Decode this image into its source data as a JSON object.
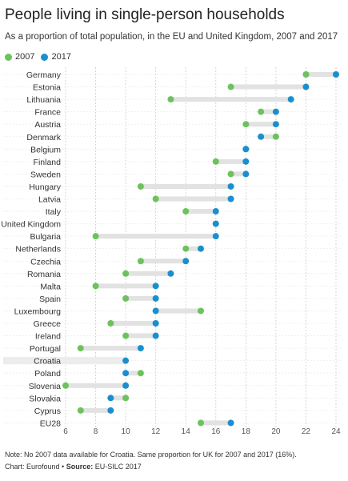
{
  "header": {
    "title": "People living in single-person households",
    "subtitle": "As a proportion of total population, in the EU and United Kingdom, 2007 and 2017"
  },
  "colors": {
    "series_2007": "#6cc25c",
    "series_2017": "#1a8fce",
    "bar": "#e2e2e2",
    "highlight": "#ececec"
  },
  "footer": {
    "note": "Note: No 2007 data available for Croatia. Same proportion for UK for 2007 and 2017 (16%).",
    "chart_credit": "Chart: Eurofound",
    "separator": " • ",
    "source_label": "Source:",
    "source_text": " EU-SILC 2017"
  },
  "chart_data": {
    "type": "dumbbell",
    "categories": [
      "Germany",
      "Estonia",
      "Lithuania",
      "France",
      "Austria",
      "Denmark",
      "Belgium",
      "Finland",
      "Sweden",
      "Hungary",
      "Latvia",
      "Italy",
      "United Kingdom",
      "Bulgaria",
      "Netherlands",
      "Czechia",
      "Romania",
      "Malta",
      "Spain",
      "Luxembourg",
      "Greece",
      "Ireland",
      "Portugal",
      "Croatia",
      "Poland",
      "Slovenia",
      "Slovakia",
      "Cyprus",
      "EU28"
    ],
    "series": [
      {
        "name": "2007",
        "color": "#6cc25c",
        "values": [
          22,
          17,
          13,
          19,
          18,
          20,
          18,
          16,
          17,
          11,
          12,
          14,
          16,
          8,
          14,
          11,
          10,
          8,
          10,
          15,
          9,
          10,
          7,
          null,
          11,
          6,
          10,
          7,
          15
        ]
      },
      {
        "name": "2017",
        "color": "#1a8fce",
        "values": [
          24,
          22,
          21,
          20,
          20,
          19,
          18,
          18,
          18,
          17,
          17,
          16,
          16,
          16,
          15,
          14,
          13,
          12,
          12,
          12,
          12,
          12,
          11,
          10,
          10,
          10,
          9,
          9,
          17
        ]
      }
    ],
    "highlighted_category": "Croatia",
    "xlim": [
      6,
      24
    ],
    "xticks": [
      6,
      8,
      10,
      12,
      14,
      16,
      18,
      20,
      22,
      24
    ],
    "grid": true,
    "legend_position": "top-left"
  }
}
